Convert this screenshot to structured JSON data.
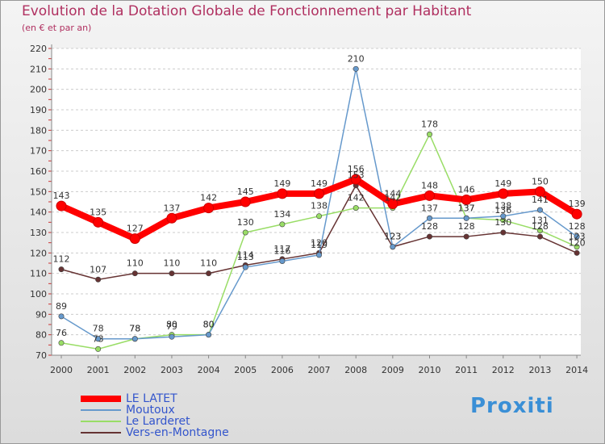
{
  "title": "Evolution de la Dotation Globale de Fonctionnement par Habitant",
  "subtitle": "(en € et par an)",
  "logo_text": "Proxiti",
  "chart_data": {
    "type": "line",
    "title": "Evolution de la Dotation Globale de Fonctionnement par Habitant",
    "ylabel": "(en € et par an)",
    "xlabel": "",
    "x": [
      "2000",
      "2001",
      "2002",
      "2003",
      "2004",
      "2005",
      "2006",
      "2007",
      "2008",
      "2009",
      "2010",
      "2011",
      "2012",
      "2013",
      "2014"
    ],
    "ylim": [
      70,
      220
    ],
    "yticks": [
      70,
      80,
      90,
      100,
      110,
      120,
      130,
      140,
      150,
      160,
      170,
      180,
      190,
      200,
      210,
      220
    ],
    "grid": "dashed horizontal",
    "legend_position": "bottom-left",
    "series": [
      {
        "name": "LE LATET",
        "color": "#ff0000",
        "values": [
          143,
          135,
          127,
          137,
          142,
          145,
          149,
          149,
          156,
          144,
          148,
          146,
          149,
          150,
          139
        ]
      },
      {
        "name": "Moutoux",
        "color": "#6699cc",
        "values": [
          89,
          78,
          78,
          79,
          80,
          113,
          116,
          119,
          210,
          123,
          137,
          137,
          138,
          141,
          128
        ]
      },
      {
        "name": "Le Larderet",
        "color": "#99dd66",
        "values": [
          76,
          73,
          78,
          80,
          80,
          130,
          134,
          138,
          142,
          142,
          178,
          137,
          136,
          131,
          123
        ]
      },
      {
        "name": "Vers-en-Montagne",
        "color": "#663333",
        "values": [
          112,
          107,
          110,
          110,
          110,
          114,
          117,
          120,
          153,
          123,
          128,
          128,
          130,
          128,
          120
        ]
      }
    ],
    "data_labels": [
      {
        "series": 0,
        "labels": [
          "143",
          "135",
          "127",
          "137",
          "142",
          "145",
          "149",
          "149",
          "156",
          "144",
          "148",
          "146",
          "149",
          "150",
          "139"
        ]
      },
      {
        "series": 1,
        "labels": [
          "89",
          "78",
          "78",
          "79",
          "80",
          "113",
          "116",
          "119",
          "210",
          "123",
          "137",
          "137",
          "138",
          "141",
          "128"
        ]
      },
      {
        "series": 2,
        "labels": [
          "76",
          "73",
          "78",
          "80",
          "80",
          "130",
          "134",
          "138",
          "142",
          "142",
          "178",
          "137",
          "136",
          "131",
          "123"
        ]
      },
      {
        "series": 3,
        "labels": [
          "112",
          "107",
          "110",
          "110",
          "110",
          "114",
          "117",
          "120",
          "153",
          "123",
          "128",
          "128",
          "130",
          "128",
          "120"
        ]
      }
    ]
  }
}
